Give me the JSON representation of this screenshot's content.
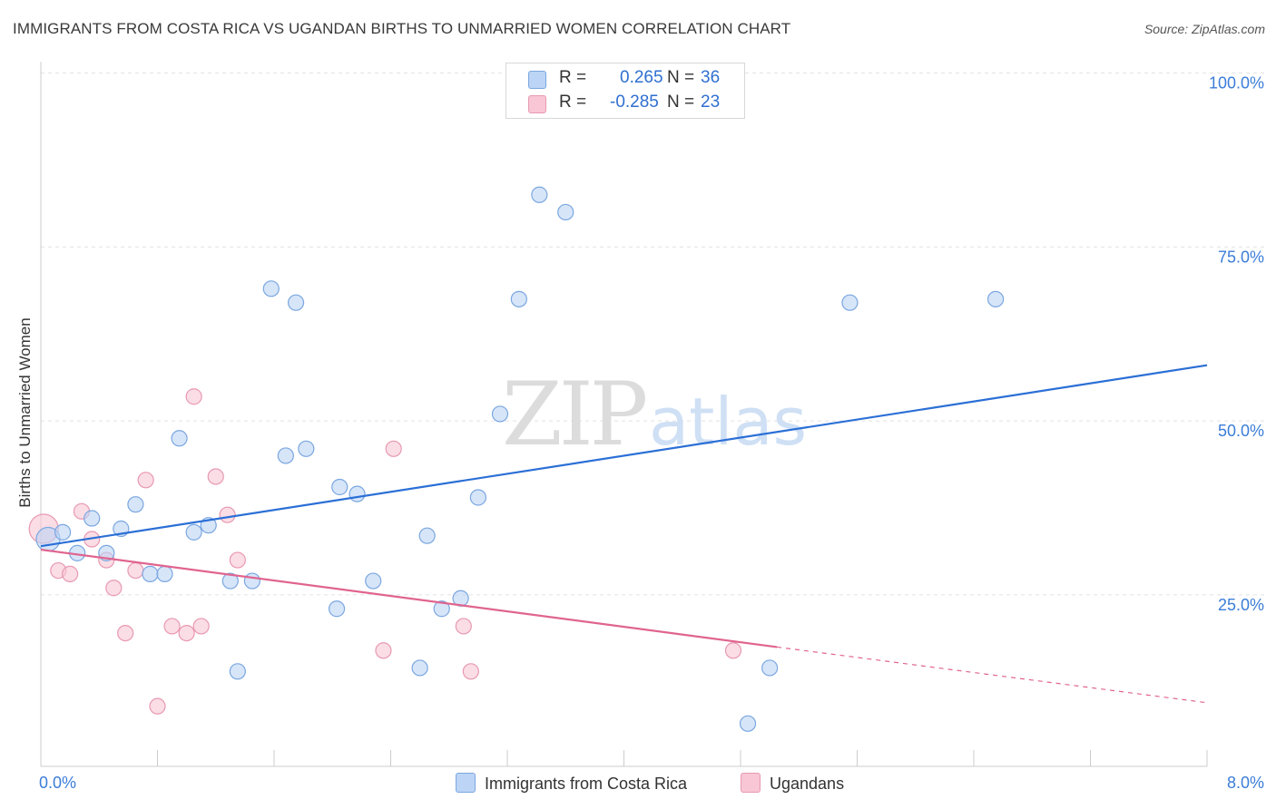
{
  "title": "IMMIGRANTS FROM COSTA RICA VS UGANDAN BIRTHS TO UNMARRIED WOMEN CORRELATION CHART",
  "source": "Source: ZipAtlas.com",
  "watermark": {
    "zip": "ZIP",
    "atlas": "atlas"
  },
  "legend": {
    "series1": {
      "r_label": "R =",
      "r_value": "0.265",
      "n_label": "N =",
      "n_value": "36"
    },
    "series2": {
      "r_label": "R =",
      "r_value": "-0.285",
      "n_label": "N =",
      "n_value": "23"
    }
  },
  "bottom_legend": {
    "series1": "Immigrants from Costa Rica",
    "series2": "Ugandans"
  },
  "colors": {
    "blue_fill": "#bcd4f5",
    "blue_stroke": "#7aa7e0",
    "blue_line": "#2b6fd6",
    "pink_fill": "#f8c6d4",
    "pink_stroke": "#e899b2",
    "pink_line": "#e0648e",
    "axis_text": "#3b7dd8"
  },
  "chart_data": {
    "type": "scatter",
    "title": "IMMIGRANTS FROM COSTA RICA VS UGANDAN BIRTHS TO UNMARRIED WOMEN CORRELATION CHART",
    "xlabel": "",
    "ylabel": "Births to Unmarried Women",
    "xlim": [
      0,
      8
    ],
    "ylim": [
      0,
      105
    ],
    "x_tick_labels": [
      "0.0%",
      "8.0%"
    ],
    "y_ticks": [
      25,
      50,
      75,
      100
    ],
    "y_tick_labels": [
      "25.0%",
      "50.0%",
      "75.0%",
      "100.0%"
    ],
    "series": [
      {
        "name": "Immigrants from Costa Rica",
        "points": [
          [
            0.05,
            33.0
          ],
          [
            0.15,
            34.0
          ],
          [
            0.25,
            31.0
          ],
          [
            0.35,
            36.0
          ],
          [
            0.45,
            31.0
          ],
          [
            0.55,
            34.5
          ],
          [
            0.65,
            38.0
          ],
          [
            0.75,
            28.0
          ],
          [
            0.85,
            28.0
          ],
          [
            0.95,
            47.5
          ],
          [
            1.05,
            34.0
          ],
          [
            1.15,
            35.0
          ],
          [
            1.3,
            27.0
          ],
          [
            1.35,
            14.0
          ],
          [
            1.45,
            27.0
          ],
          [
            1.58,
            69.0
          ],
          [
            1.68,
            45.0
          ],
          [
            1.75,
            67.0
          ],
          [
            1.82,
            46.0
          ],
          [
            2.03,
            23.0
          ],
          [
            2.05,
            40.5
          ],
          [
            2.17,
            39.5
          ],
          [
            2.28,
            27.0
          ],
          [
            2.6,
            14.5
          ],
          [
            2.65,
            33.5
          ],
          [
            2.75,
            23.0
          ],
          [
            2.88,
            24.5
          ],
          [
            3.0,
            39.0
          ],
          [
            3.15,
            51.0
          ],
          [
            3.28,
            67.5
          ],
          [
            3.42,
            82.5
          ],
          [
            3.6,
            80.0
          ],
          [
            4.85,
            6.5
          ],
          [
            5.0,
            14.5
          ],
          [
            5.55,
            67.0
          ],
          [
            6.55,
            67.5
          ]
        ],
        "trendline": {
          "x": [
            0.0,
            8.0
          ],
          "y": [
            32.0,
            58.0
          ],
          "style": "solid"
        }
      },
      {
        "name": "Ugandans",
        "points": [
          [
            0.02,
            34.5
          ],
          [
            0.12,
            28.5
          ],
          [
            0.2,
            28.0
          ],
          [
            0.28,
            37.0
          ],
          [
            0.35,
            33.0
          ],
          [
            0.45,
            30.0
          ],
          [
            0.5,
            26.0
          ],
          [
            0.58,
            19.5
          ],
          [
            0.65,
            28.5
          ],
          [
            0.72,
            41.5
          ],
          [
            0.8,
            9.0
          ],
          [
            0.9,
            20.5
          ],
          [
            1.0,
            19.5
          ],
          [
            1.05,
            53.5
          ],
          [
            1.1,
            20.5
          ],
          [
            1.2,
            42.0
          ],
          [
            1.28,
            36.5
          ],
          [
            1.35,
            30.0
          ],
          [
            2.35,
            17.0
          ],
          [
            2.42,
            46.0
          ],
          [
            2.9,
            20.5
          ],
          [
            2.95,
            14.0
          ],
          [
            4.75,
            17.0
          ]
        ],
        "trendline": {
          "x": [
            0.0,
            5.05,
            8.0
          ],
          "y": [
            31.5,
            17.5,
            9.5
          ],
          "style": "solid-then-dashed"
        }
      }
    ]
  }
}
